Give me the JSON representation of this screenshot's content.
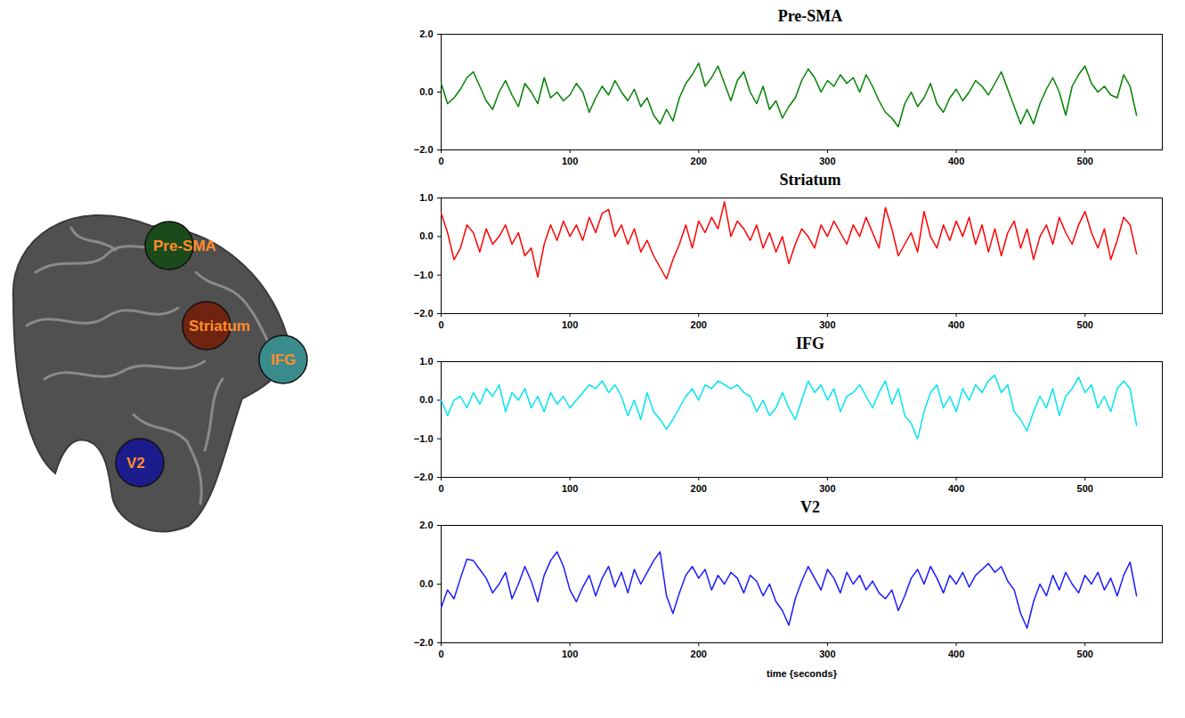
{
  "regions": [
    {
      "label": "Pre-SMA",
      "color": "#1b4a1b"
    },
    {
      "label": "Striatum",
      "color": "#6e2410"
    },
    {
      "label": "IFG",
      "color": "#3a8c8c"
    },
    {
      "label": "V2",
      "color": "#1c1c8c"
    }
  ],
  "chart_data": [
    {
      "type": "line",
      "title": "Pre-SMA",
      "color": "#008000",
      "xlim": [
        0,
        560
      ],
      "xticks": [
        0,
        100,
        200,
        300,
        400,
        500
      ],
      "ylim": [
        -2,
        2
      ],
      "yticks": [
        -2,
        0,
        2
      ],
      "x": [
        0,
        5,
        10,
        15,
        20,
        25,
        30,
        35,
        40,
        45,
        50,
        55,
        60,
        65,
        70,
        75,
        80,
        85,
        90,
        95,
        100,
        105,
        110,
        115,
        120,
        125,
        130,
        135,
        140,
        145,
        150,
        155,
        160,
        165,
        170,
        175,
        180,
        185,
        190,
        195,
        200,
        205,
        210,
        215,
        220,
        225,
        230,
        235,
        240,
        245,
        250,
        255,
        260,
        265,
        270,
        275,
        280,
        285,
        290,
        295,
        300,
        305,
        310,
        315,
        320,
        325,
        330,
        335,
        340,
        345,
        350,
        355,
        360,
        365,
        370,
        375,
        380,
        385,
        390,
        395,
        400,
        405,
        410,
        415,
        420,
        425,
        430,
        435,
        440,
        445,
        450,
        455,
        460,
        465,
        470,
        475,
        480,
        485,
        490,
        495,
        500,
        505,
        510,
        515,
        520,
        525,
        530,
        535,
        540
      ],
      "values": [
        0.3,
        -0.4,
        -0.2,
        0.1,
        0.5,
        0.7,
        0.2,
        -0.3,
        -0.6,
        0.0,
        0.4,
        -0.1,
        -0.5,
        0.3,
        0.0,
        -0.4,
        0.5,
        -0.2,
        0.0,
        -0.3,
        -0.1,
        0.3,
        0.0,
        -0.7,
        -0.2,
        0.2,
        -0.1,
        0.4,
        0.0,
        -0.3,
        0.1,
        -0.5,
        -0.2,
        -0.8,
        -1.1,
        -0.6,
        -1.0,
        -0.2,
        0.3,
        0.6,
        1.0,
        0.2,
        0.5,
        0.9,
        0.3,
        -0.3,
        0.4,
        0.7,
        0.0,
        -0.4,
        0.2,
        -0.6,
        -0.3,
        -0.9,
        -0.5,
        -0.2,
        0.4,
        0.8,
        0.5,
        0.0,
        0.4,
        0.2,
        0.6,
        0.3,
        0.5,
        0.0,
        0.6,
        0.2,
        -0.3,
        -0.7,
        -0.9,
        -1.2,
        -0.4,
        0.0,
        -0.5,
        -0.2,
        0.3,
        -0.4,
        -0.7,
        -0.2,
        0.1,
        -0.3,
        0.0,
        0.4,
        0.2,
        -0.1,
        0.3,
        0.7,
        0.1,
        -0.5,
        -1.1,
        -0.6,
        -1.1,
        -0.4,
        0.1,
        0.5,
        0.0,
        -0.8,
        0.2,
        0.6,
        0.9,
        0.3,
        0.0,
        0.2,
        -0.1,
        -0.2,
        0.6,
        0.2,
        -0.8
      ]
    },
    {
      "type": "line",
      "title": "Striatum",
      "color": "#ff0000",
      "xlim": [
        0,
        560
      ],
      "xticks": [
        0,
        100,
        200,
        300,
        400,
        500
      ],
      "ylim": [
        -2,
        1
      ],
      "yticks": [
        -2,
        -1,
        0,
        1
      ],
      "x": [
        0,
        5,
        10,
        15,
        20,
        25,
        30,
        35,
        40,
        45,
        50,
        55,
        60,
        65,
        70,
        75,
        80,
        85,
        90,
        95,
        100,
        105,
        110,
        115,
        120,
        125,
        130,
        135,
        140,
        145,
        150,
        155,
        160,
        165,
        170,
        175,
        180,
        185,
        190,
        195,
        200,
        205,
        210,
        215,
        220,
        225,
        230,
        235,
        240,
        245,
        250,
        255,
        260,
        265,
        270,
        275,
        280,
        285,
        290,
        295,
        300,
        305,
        310,
        315,
        320,
        325,
        330,
        335,
        340,
        345,
        350,
        355,
        360,
        365,
        370,
        375,
        380,
        385,
        390,
        395,
        400,
        405,
        410,
        415,
        420,
        425,
        430,
        435,
        440,
        445,
        450,
        455,
        460,
        465,
        470,
        475,
        480,
        485,
        490,
        495,
        500,
        505,
        510,
        515,
        520,
        525,
        530,
        535,
        540
      ],
      "values": [
        0.6,
        0.1,
        -0.6,
        -0.3,
        0.3,
        0.1,
        -0.4,
        0.2,
        -0.2,
        0.0,
        0.3,
        -0.2,
        0.1,
        -0.5,
        -0.3,
        -1.05,
        -0.2,
        0.3,
        -0.1,
        0.4,
        0.0,
        0.3,
        -0.1,
        0.5,
        0.1,
        0.6,
        0.7,
        0.0,
        0.3,
        -0.2,
        0.2,
        -0.4,
        -0.1,
        -0.5,
        -0.8,
        -1.1,
        -0.6,
        -0.2,
        0.3,
        -0.3,
        0.4,
        0.1,
        0.5,
        0.2,
        0.9,
        0.0,
        0.4,
        0.2,
        -0.1,
        0.3,
        -0.3,
        0.1,
        -0.4,
        0.0,
        -0.7,
        -0.2,
        0.2,
        0.0,
        -0.3,
        0.3,
        0.0,
        0.4,
        0.1,
        -0.2,
        0.3,
        0.0,
        0.5,
        0.1,
        -0.3,
        0.75,
        0.2,
        -0.5,
        -0.2,
        0.1,
        -0.4,
        0.65,
        0.0,
        -0.3,
        0.3,
        -0.1,
        0.4,
        0.0,
        0.5,
        -0.2,
        0.3,
        -0.4,
        0.2,
        -0.5,
        0.1,
        0.4,
        -0.3,
        0.2,
        -0.6,
        0.0,
        0.3,
        -0.2,
        0.5,
        0.1,
        -0.2,
        0.3,
        0.65,
        0.1,
        -0.3,
        0.2,
        -0.6,
        -0.1,
        0.5,
        0.3,
        -0.45
      ]
    },
    {
      "type": "line",
      "title": "IFG",
      "color": "#00e5ee",
      "xlim": [
        0,
        560
      ],
      "xticks": [
        0,
        100,
        200,
        300,
        400,
        500
      ],
      "ylim": [
        -2,
        1
      ],
      "yticks": [
        -2,
        -1,
        0,
        1
      ],
      "x": [
        0,
        5,
        10,
        15,
        20,
        25,
        30,
        35,
        40,
        45,
        50,
        55,
        60,
        65,
        70,
        75,
        80,
        85,
        90,
        95,
        100,
        105,
        110,
        115,
        120,
        125,
        130,
        135,
        140,
        145,
        150,
        155,
        160,
        165,
        170,
        175,
        180,
        185,
        190,
        195,
        200,
        205,
        210,
        215,
        220,
        225,
        230,
        235,
        240,
        245,
        250,
        255,
        260,
        265,
        270,
        275,
        280,
        285,
        290,
        295,
        300,
        305,
        310,
        315,
        320,
        325,
        330,
        335,
        340,
        345,
        350,
        355,
        360,
        365,
        370,
        375,
        380,
        385,
        390,
        395,
        400,
        405,
        410,
        415,
        420,
        425,
        430,
        435,
        440,
        445,
        450,
        455,
        460,
        465,
        470,
        475,
        480,
        485,
        490,
        495,
        500,
        505,
        510,
        515,
        520,
        525,
        530,
        535,
        540
      ],
      "values": [
        0.0,
        -0.4,
        0.0,
        0.1,
        -0.2,
        0.2,
        -0.1,
        0.3,
        0.1,
        0.4,
        -0.3,
        0.2,
        0.0,
        0.3,
        -0.2,
        0.1,
        -0.3,
        0.2,
        -0.1,
        0.1,
        -0.2,
        0.0,
        0.2,
        0.4,
        0.3,
        0.5,
        0.2,
        0.4,
        0.1,
        -0.4,
        0.0,
        -0.5,
        0.2,
        -0.3,
        -0.5,
        -0.75,
        -0.5,
        -0.2,
        0.1,
        0.3,
        0.0,
        0.4,
        0.3,
        0.5,
        0.4,
        0.3,
        0.4,
        0.2,
        0.1,
        -0.3,
        0.0,
        -0.4,
        -0.2,
        0.2,
        -0.2,
        -0.5,
        0.0,
        0.5,
        0.2,
        0.4,
        0.0,
        0.3,
        -0.3,
        0.1,
        0.2,
        0.4,
        0.1,
        -0.2,
        0.2,
        0.5,
        -0.1,
        0.3,
        -0.4,
        -0.6,
        -1.0,
        -0.3,
        0.2,
        0.4,
        -0.2,
        0.1,
        -0.3,
        0.3,
        0.0,
        0.4,
        0.2,
        0.5,
        0.65,
        0.2,
        0.4,
        -0.3,
        -0.5,
        -0.8,
        -0.3,
        0.1,
        -0.2,
        0.3,
        -0.4,
        0.1,
        0.3,
        0.6,
        0.2,
        0.4,
        -0.2,
        0.1,
        -0.3,
        0.3,
        0.5,
        0.3,
        -0.65
      ]
    },
    {
      "type": "line",
      "title": "V2",
      "color": "#1a1aff",
      "xlabel": "time {seconds}",
      "xlim": [
        0,
        560
      ],
      "xticks": [
        0,
        100,
        200,
        300,
        400,
        500
      ],
      "ylim": [
        -2,
        2
      ],
      "yticks": [
        -2,
        0,
        2
      ],
      "x": [
        0,
        5,
        10,
        15,
        20,
        25,
        30,
        35,
        40,
        45,
        50,
        55,
        60,
        65,
        70,
        75,
        80,
        85,
        90,
        95,
        100,
        105,
        110,
        115,
        120,
        125,
        130,
        135,
        140,
        145,
        150,
        155,
        160,
        165,
        170,
        175,
        180,
        185,
        190,
        195,
        200,
        205,
        210,
        215,
        220,
        225,
        230,
        235,
        240,
        245,
        250,
        255,
        260,
        265,
        270,
        275,
        280,
        285,
        290,
        295,
        300,
        305,
        310,
        315,
        320,
        325,
        330,
        335,
        340,
        345,
        350,
        355,
        360,
        365,
        370,
        375,
        380,
        385,
        390,
        395,
        400,
        405,
        410,
        415,
        420,
        425,
        430,
        435,
        440,
        445,
        450,
        455,
        460,
        465,
        470,
        475,
        480,
        485,
        490,
        495,
        500,
        505,
        510,
        515,
        520,
        525,
        530,
        535,
        540
      ],
      "values": [
        -0.8,
        -0.2,
        -0.5,
        0.2,
        0.85,
        0.8,
        0.5,
        0.2,
        -0.3,
        0.0,
        0.4,
        -0.5,
        0.0,
        0.6,
        0.1,
        -0.6,
        0.3,
        0.8,
        1.1,
        0.6,
        -0.2,
        -0.6,
        -0.1,
        0.3,
        -0.4,
        0.2,
        0.6,
        -0.1,
        0.4,
        -0.3,
        0.5,
        0.0,
        0.4,
        0.8,
        1.1,
        -0.4,
        -1.0,
        -0.3,
        0.3,
        0.6,
        0.2,
        0.5,
        -0.2,
        0.3,
        0.0,
        0.4,
        0.2,
        -0.3,
        0.3,
        0.1,
        -0.4,
        0.0,
        -0.6,
        -0.9,
        -1.4,
        -0.5,
        0.1,
        0.6,
        0.2,
        -0.2,
        0.5,
        0.2,
        -0.3,
        0.4,
        0.0,
        0.3,
        -0.2,
        0.1,
        -0.3,
        -0.5,
        -0.2,
        -0.9,
        -0.4,
        0.2,
        0.5,
        0.0,
        0.6,
        0.2,
        -0.3,
        0.3,
        0.0,
        0.4,
        -0.1,
        0.3,
        0.5,
        0.7,
        0.4,
        0.6,
        0.1,
        -0.2,
        -1.0,
        -1.5,
        -0.6,
        0.0,
        -0.4,
        0.3,
        -0.2,
        0.4,
        0.0,
        -0.3,
        0.3,
        0.0,
        0.4,
        -0.2,
        0.2,
        -0.4,
        0.3,
        0.75,
        -0.4
      ]
    }
  ]
}
